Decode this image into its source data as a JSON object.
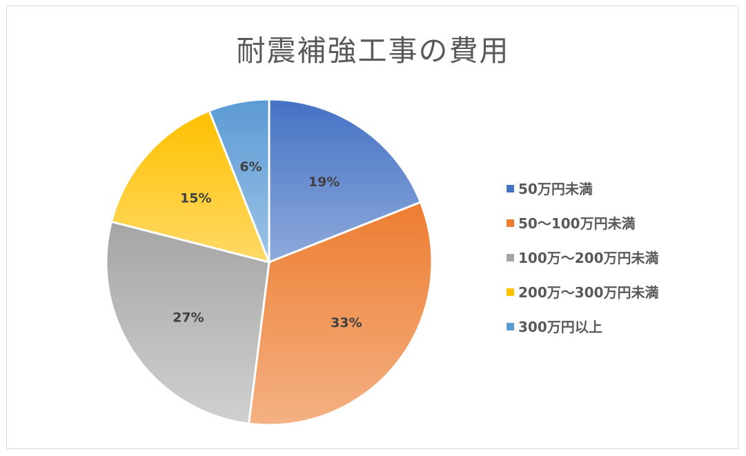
{
  "chart_data": {
    "type": "pie",
    "title": "耐震補強工事の費用",
    "categories": [
      "50万円未満",
      "50〜100万円未満",
      "100万〜200万円未満",
      "200万〜300万円未満",
      "300万円以上"
    ],
    "values": [
      19,
      33,
      27,
      15,
      6
    ],
    "data_labels": [
      "19%",
      "33%",
      "27%",
      "15%",
      "6%"
    ],
    "colors": [
      "#4472c4",
      "#ed7d31",
      "#a5a5a5",
      "#ffc000",
      "#5b9bd5"
    ],
    "colors_light": [
      "#8eaadb",
      "#f4b183",
      "#d0d0d0",
      "#ffd966",
      "#9dc3e6"
    ],
    "legend_position": "right"
  }
}
